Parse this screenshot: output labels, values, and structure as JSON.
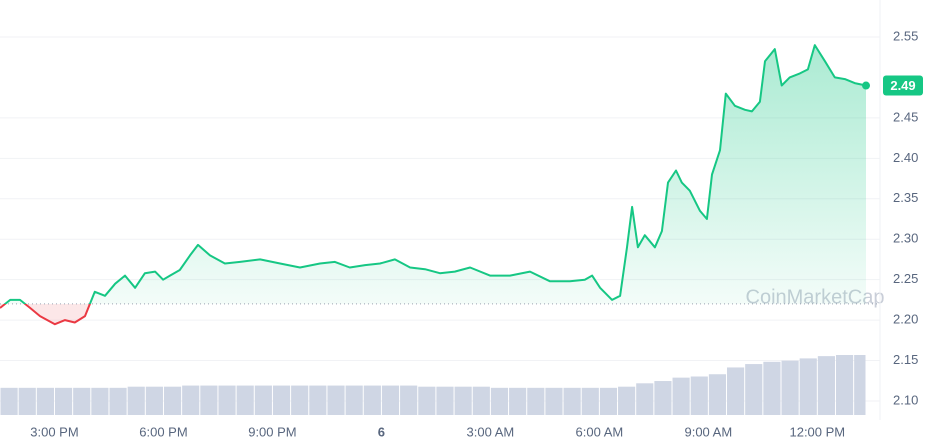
{
  "chart_data": {
    "type": "line",
    "watermark": "CoinMarketCap",
    "x": [
      13.5,
      13.78,
      14.05,
      14.33,
      14.6,
      15.01,
      15.29,
      15.56,
      15.84,
      16.11,
      16.39,
      16.67,
      16.94,
      17.22,
      17.49,
      17.77,
      17.99,
      18.18,
      18.45,
      18.73,
      18.95,
      19.28,
      19.69,
      20.11,
      20.66,
      21.21,
      21.76,
      22.31,
      22.72,
      23.13,
      23.55,
      23.96,
      24.37,
      24.79,
      25.2,
      25.61,
      26.02,
      26.44,
      26.99,
      27.54,
      28.09,
      28.64,
      29.19,
      29.6,
      29.8,
      30.02,
      30.35,
      30.57,
      30.76,
      30.9,
      31.06,
      31.25,
      31.53,
      31.72,
      31.89,
      32.11,
      32.27,
      32.49,
      32.77,
      32.96,
      33.1,
      33.32,
      33.48,
      33.73,
      34.01,
      34.2,
      34.42,
      34.56,
      34.83,
      35.02,
      35.24,
      35.52,
      35.74,
      35.93,
      36.21,
      36.48,
      36.76,
      37.03,
      37.34
    ],
    "series": [
      {
        "color": "#16c784",
        "below_color": "#ea3943",
        "values": [
          2.215,
          2.225,
          2.225,
          2.215,
          2.205,
          2.195,
          2.2,
          2.197,
          2.205,
          2.235,
          2.23,
          2.245,
          2.255,
          2.24,
          2.258,
          2.26,
          2.25,
          2.255,
          2.262,
          2.28,
          2.293,
          2.28,
          2.27,
          2.272,
          2.275,
          2.27,
          2.265,
          2.27,
          2.272,
          2.265,
          2.268,
          2.27,
          2.275,
          2.265,
          2.263,
          2.258,
          2.26,
          2.265,
          2.255,
          2.255,
          2.26,
          2.248,
          2.248,
          2.25,
          2.255,
          2.24,
          2.225,
          2.23,
          2.29,
          2.34,
          2.29,
          2.305,
          2.29,
          2.31,
          2.37,
          2.385,
          2.37,
          2.36,
          2.335,
          2.325,
          2.38,
          2.41,
          2.48,
          2.465,
          2.46,
          2.458,
          2.47,
          2.52,
          2.535,
          2.49,
          2.5,
          2.505,
          2.51,
          2.54,
          2.52,
          2.5,
          2.498,
          2.493,
          2.49
        ]
      }
    ],
    "baseline": 2.22,
    "xlim": [
      13.5,
      37.34
    ],
    "xticks": [
      {
        "value": 15,
        "label": "3:00 PM"
      },
      {
        "value": 18,
        "label": "6:00 PM"
      },
      {
        "value": 21,
        "label": "9:00 PM"
      },
      {
        "value": 24,
        "label": "6"
      },
      {
        "value": 27,
        "label": "3:00 AM"
      },
      {
        "value": 30,
        "label": "6:00 AM"
      },
      {
        "value": 33,
        "label": "9:00 AM"
      },
      {
        "value": 36,
        "label": "12:00 PM"
      }
    ],
    "ylim": [
      2.09,
      2.58
    ],
    "yticks": [
      {
        "value": 2.1,
        "label": "2.10"
      },
      2.15,
      {
        "value": 2.2,
        "label": "2.20"
      },
      2.25,
      {
        "value": 2.3,
        "label": "2.30"
      },
      2.35,
      {
        "value": 2.4,
        "label": "2.40"
      },
      2.45,
      2.55
    ],
    "grid": true,
    "volume": {
      "color": "#cfd6e4",
      "x": [
        13.5,
        14,
        14.5,
        15,
        15.5,
        16,
        16.5,
        17,
        17.5,
        18,
        18.5,
        19,
        19.5,
        20,
        20.5,
        21,
        21.5,
        22,
        22.5,
        23,
        23.5,
        24,
        24.5,
        25,
        25.5,
        26,
        26.5,
        27,
        27.5,
        28,
        28.5,
        29,
        29.5,
        30,
        30.5,
        31,
        31.5,
        32,
        32.5,
        33,
        33.5,
        34,
        34.5,
        35,
        35.5,
        36,
        36.5,
        37
      ],
      "values": [
        24,
        24,
        24,
        24,
        24,
        24,
        24,
        25,
        25,
        25,
        26,
        26,
        26,
        26,
        26,
        26,
        26,
        26,
        26,
        26,
        26,
        26,
        26,
        25,
        25,
        25,
        25,
        24,
        24,
        24,
        24,
        24,
        24,
        24,
        25,
        28,
        30,
        33,
        34,
        36,
        42,
        45,
        47,
        48,
        50,
        52,
        53,
        53
      ]
    }
  }
}
